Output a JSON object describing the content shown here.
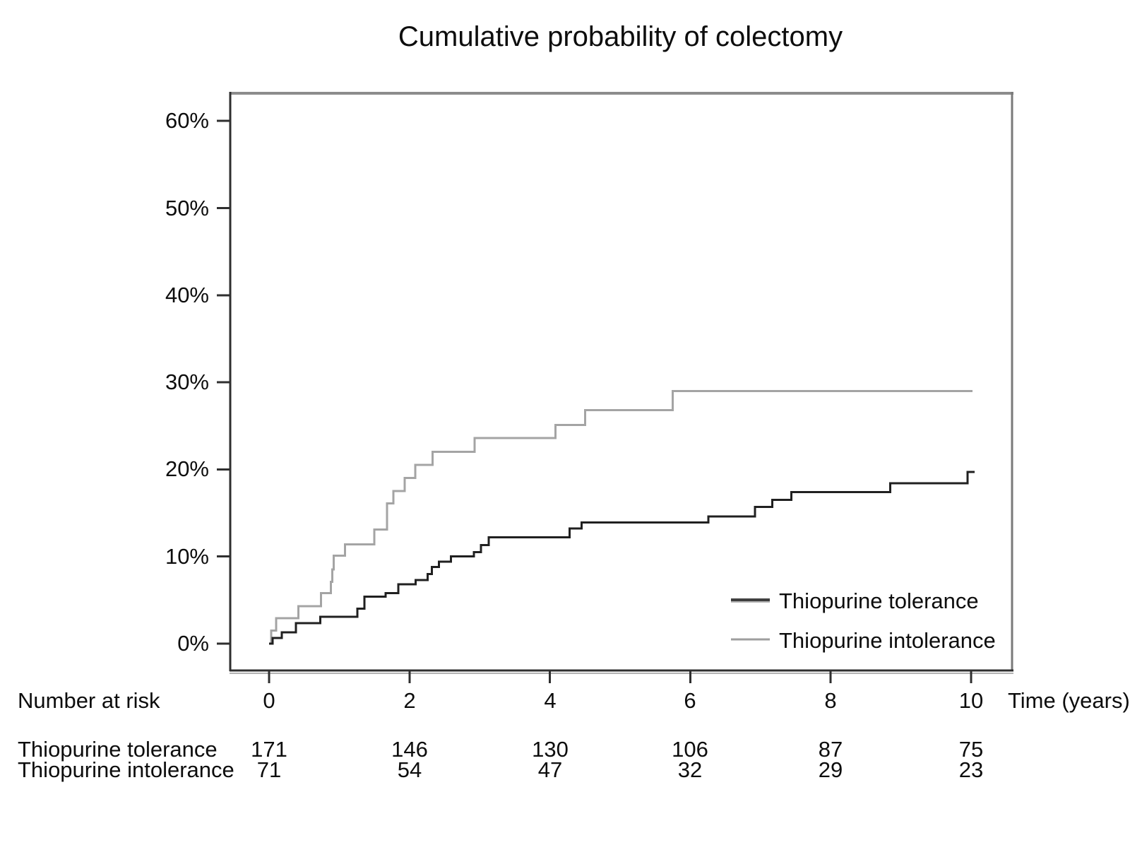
{
  "title": "Cumulative probability of colectomy",
  "chart_data": {
    "type": "line",
    "step": true,
    "title": "Cumulative probability of colectomy",
    "xlabel": "Time (years)",
    "ylabel": "",
    "xlim": [
      0,
      10.6
    ],
    "ylim": [
      0,
      63
    ],
    "grid": false,
    "legend_position": "inside lower right",
    "x_ticks": [
      0,
      2,
      4,
      6,
      8,
      10
    ],
    "y_ticks": [
      0,
      10,
      20,
      30,
      40,
      50,
      60
    ],
    "y_tick_labels": [
      "0%",
      "10%",
      "20%",
      "30%",
      "40%",
      "50%",
      "60%"
    ],
    "x_tick_labels": [
      "0",
      "2",
      "4",
      "6",
      "8",
      "10"
    ],
    "series": [
      {
        "name": "Thiopurine tolerance",
        "color": "#202020",
        "units": "percent",
        "end_time": 10.05,
        "steps": [
          [
            0,
            0
          ],
          [
            0.05,
            0.65
          ],
          [
            0.18,
            1.3
          ],
          [
            0.38,
            2.35
          ],
          [
            0.73,
            3.1
          ],
          [
            1.26,
            4.0
          ],
          [
            1.36,
            5.4
          ],
          [
            1.66,
            5.8
          ],
          [
            1.84,
            6.8
          ],
          [
            2.09,
            7.3
          ],
          [
            2.26,
            8.0
          ],
          [
            2.32,
            8.8
          ],
          [
            2.42,
            9.4
          ],
          [
            2.59,
            10.0
          ],
          [
            2.92,
            10.5
          ],
          [
            3.02,
            11.3
          ],
          [
            3.13,
            12.2
          ],
          [
            4.28,
            13.2
          ],
          [
            4.45,
            13.9
          ],
          [
            6.26,
            14.6
          ],
          [
            6.92,
            15.7
          ],
          [
            7.17,
            16.5
          ],
          [
            7.44,
            17.4
          ],
          [
            8.85,
            18.4
          ],
          [
            9.95,
            19.7
          ]
        ]
      },
      {
        "name": "Thiopurine intolerance",
        "color": "#a4a4a4",
        "units": "percent",
        "end_time": 10.02,
        "steps": [
          [
            0,
            0
          ],
          [
            0.03,
            1.5
          ],
          [
            0.1,
            2.9
          ],
          [
            0.42,
            4.3
          ],
          [
            0.74,
            5.8
          ],
          [
            0.88,
            7.1
          ],
          [
            0.9,
            8.5
          ],
          [
            0.92,
            10.1
          ],
          [
            1.08,
            11.4
          ],
          [
            1.5,
            13.1
          ],
          [
            1.68,
            16.1
          ],
          [
            1.77,
            17.5
          ],
          [
            1.93,
            19.0
          ],
          [
            2.08,
            20.5
          ],
          [
            2.33,
            22.0
          ],
          [
            2.93,
            23.6
          ],
          [
            4.08,
            25.1
          ],
          [
            4.5,
            26.8
          ],
          [
            5.75,
            29.0
          ]
        ]
      }
    ]
  },
  "legend": {
    "items": [
      {
        "label": "Thiopurine tolerance",
        "color": "#3f3f3f"
      },
      {
        "label": "Thiopurine intolerance",
        "color": "#9e9e9e"
      }
    ]
  },
  "risk_table": {
    "heading": "Number at risk",
    "time_points": [
      0,
      2,
      4,
      6,
      8,
      10
    ],
    "rows": [
      {
        "label": "Thiopurine tolerance",
        "values": [
          171,
          146,
          130,
          106,
          87,
          75
        ]
      },
      {
        "label": "Thiopurine intolerance",
        "values": [
          71,
          54,
          47,
          32,
          29,
          23
        ]
      }
    ]
  }
}
